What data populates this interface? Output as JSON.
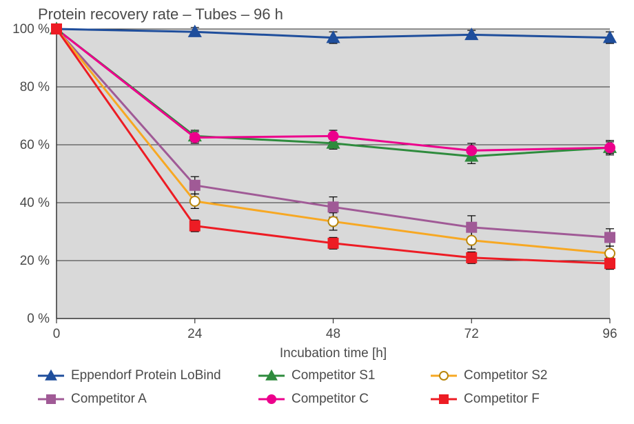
{
  "chart": {
    "type": "line",
    "title": "Protein recovery rate – Tubes – 96 h",
    "title_fontsize": 22,
    "xlabel": "Incubation time [h]",
    "xlabel_fontsize": 19,
    "x_categories": [
      "0",
      "24",
      "48",
      "72",
      "96"
    ],
    "xlim": [
      0,
      4
    ],
    "ylim": [
      0,
      100
    ],
    "ytick_step": 20,
    "ytick_labels": [
      "0 %",
      "20 %",
      "40 %",
      "60 %",
      "80 %",
      "100 %"
    ],
    "tick_fontsize": 19,
    "plot_background_color": "#d9d9d9",
    "grid_color": "#333333",
    "grid_width": 1,
    "axis_color": "#333333",
    "line_width": 3,
    "marker_size": 7,
    "error_bar_color": "#000000",
    "error_bar_width": 1.2,
    "error_cap_width": 6,
    "series": [
      {
        "name": "Eppendorf Protein LoBind",
        "color": "#1f4e9c",
        "marker": "triangle",
        "marker_fill": "#1f4e9c",
        "marker_stroke": "#1f4e9c",
        "y": [
          100,
          99,
          97,
          98,
          97
        ],
        "err": [
          0,
          1.5,
          2,
          1.5,
          2
        ]
      },
      {
        "name": "Competitor S1",
        "color": "#2e8b3d",
        "marker": "triangle",
        "marker_fill": "#2e8b3d",
        "marker_stroke": "#2e8b3d",
        "y": [
          100,
          63,
          60.5,
          56,
          59
        ],
        "err": [
          0,
          2,
          2,
          2.5,
          2.5
        ]
      },
      {
        "name": "Competitor C",
        "color": "#ec008c",
        "marker": "circle",
        "marker_fill": "#ec008c",
        "marker_stroke": "#ec008c",
        "y": [
          100,
          62.5,
          63,
          58,
          59
        ],
        "err": [
          0,
          2,
          2,
          2.5,
          2
        ]
      },
      {
        "name": "Competitor A",
        "color": "#a05a96",
        "marker": "square",
        "marker_fill": "#a05a96",
        "marker_stroke": "#a05a96",
        "y": [
          100,
          46,
          38.5,
          31.5,
          28
        ],
        "err": [
          0,
          3,
          3.5,
          4,
          3
        ]
      },
      {
        "name": "Competitor S2",
        "color": "#f7a823",
        "marker": "circle",
        "marker_fill": "#ffffff",
        "marker_stroke": "#b8860b",
        "y": [
          100,
          40.5,
          33.5,
          27,
          22.5
        ],
        "err": [
          0,
          2.5,
          3,
          3,
          2.5
        ]
      },
      {
        "name": "Competitor F",
        "color": "#ed1c24",
        "marker": "square",
        "marker_fill": "#ed1c24",
        "marker_stroke": "#ed1c24",
        "y": [
          100,
          32,
          26,
          21,
          19
        ],
        "err": [
          0,
          2,
          2,
          2,
          2
        ]
      }
    ],
    "legend_layout": {
      "rows": [
        [
          "Eppendorf Protein LoBind",
          "Competitor S1",
          "Competitor S2"
        ],
        [
          "Competitor A",
          "Competitor C",
          "Competitor F"
        ]
      ]
    }
  }
}
